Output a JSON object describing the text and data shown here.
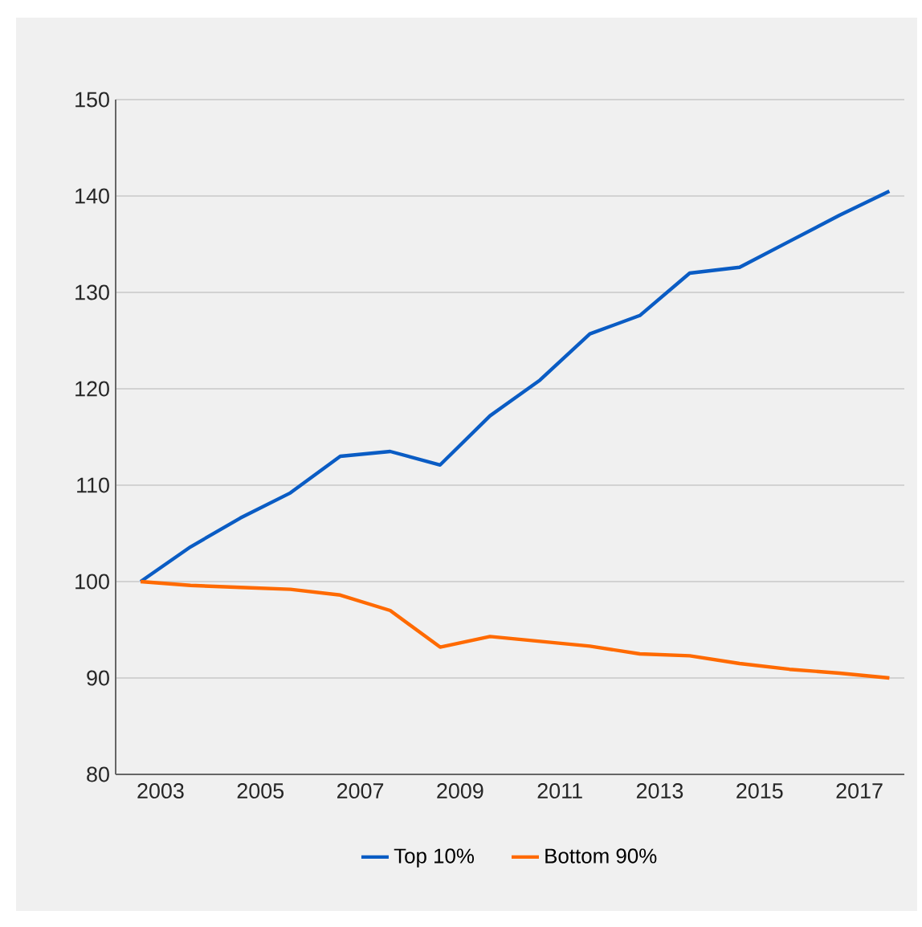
{
  "chart_data": {
    "type": "line",
    "x": [
      2002.6,
      2003.6,
      2004.6,
      2005.6,
      2006.6,
      2007.6,
      2008.6,
      2009.6,
      2010.6,
      2011.6,
      2012.6,
      2013.6,
      2014.6,
      2015.6,
      2016.6,
      2017.6
    ],
    "series": [
      {
        "name": "Top 10%",
        "color": "#0a5cc4",
        "values": [
          100,
          103.6,
          106.6,
          109.2,
          113.0,
          113.5,
          112.1,
          117.2,
          120.9,
          125.7,
          127.6,
          132.0,
          132.6,
          135.3,
          138.0,
          140.5
        ]
      },
      {
        "name": "Bottom 90%",
        "color": "#ff6a00",
        "values": [
          100,
          99.6,
          99.4,
          99.2,
          98.6,
          97.0,
          93.2,
          94.3,
          93.8,
          93.3,
          92.5,
          92.3,
          91.5,
          90.9,
          90.5,
          90.0
        ]
      }
    ],
    "xlim": [
      2002.1,
      2017.9
    ],
    "ylim": [
      80,
      150
    ],
    "xticks": [
      2003,
      2005,
      2007,
      2009,
      2011,
      2013,
      2015,
      2017
    ],
    "yticks": [
      80,
      90,
      100,
      110,
      120,
      130,
      140,
      150
    ],
    "grid": "y",
    "legend": "bottom",
    "marker": "none",
    "line_style": "solid"
  }
}
